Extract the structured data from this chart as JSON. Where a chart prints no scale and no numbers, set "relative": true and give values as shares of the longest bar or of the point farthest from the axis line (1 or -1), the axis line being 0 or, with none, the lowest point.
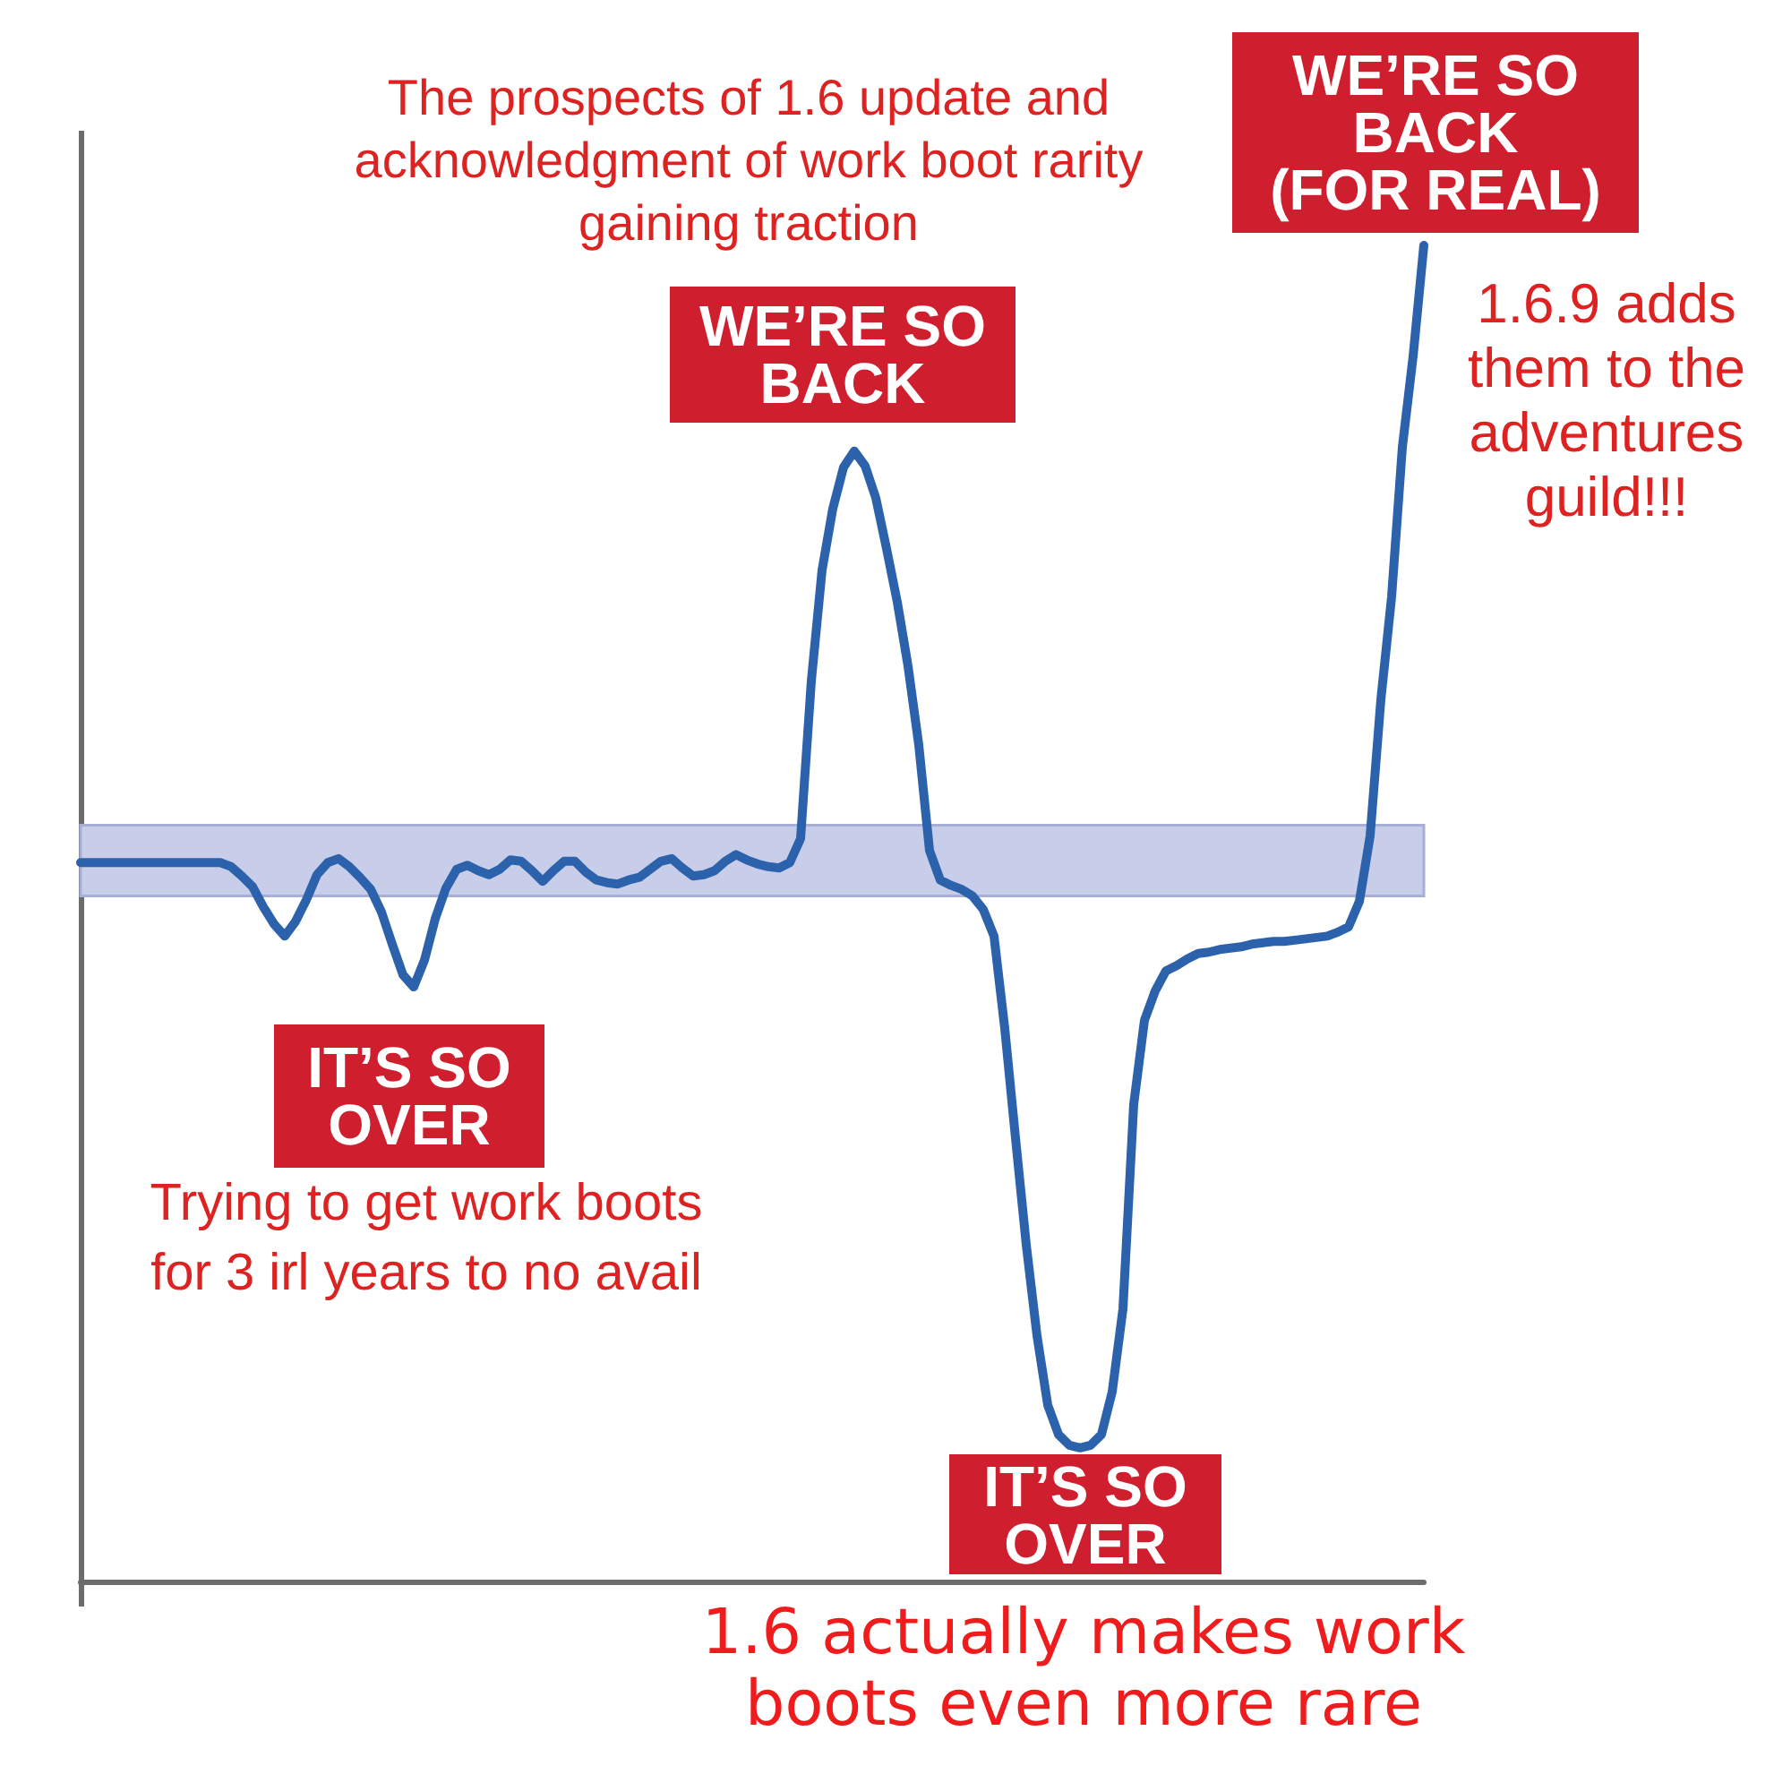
{
  "chart_data": {
    "type": "line",
    "relative": true,
    "marker": "none",
    "categories": [
      null,
      null,
      null,
      null,
      null,
      null,
      null,
      null,
      null,
      null,
      null,
      null,
      null,
      null,
      null,
      null,
      null,
      null,
      null,
      null,
      null,
      null,
      null,
      null,
      null,
      null,
      null,
      null,
      null,
      null,
      null,
      null,
      null,
      null,
      null,
      null,
      null,
      null,
      null,
      null,
      null,
      null,
      null,
      null,
      null,
      null,
      null,
      null,
      null,
      null,
      null,
      null,
      null,
      null,
      null,
      null,
      null,
      null,
      null,
      null,
      null,
      null,
      null,
      null,
      null,
      null,
      null,
      null,
      null,
      null,
      null,
      null,
      null,
      null,
      null,
      null,
      null,
      null,
      null,
      null,
      null,
      null,
      null,
      null,
      null,
      null,
      null,
      null,
      null,
      null,
      null,
      null,
      null,
      null,
      null,
      null,
      null,
      null,
      null,
      null,
      null,
      null,
      null,
      null,
      null,
      null,
      null,
      null,
      null,
      null,
      null,
      null,
      null,
      null,
      null,
      null,
      null,
      null,
      null,
      null,
      null,
      null,
      null,
      null,
      null,
      null
    ],
    "series": [
      {
        "color": "#2b62ab",
        "values": [
          0.538,
          0.538,
          0.538,
          0.538,
          0.538,
          0.538,
          0.538,
          0.538,
          0.538,
          0.538,
          0.538,
          0.538,
          0.538,
          0.538,
          0.535,
          0.528,
          0.52,
          0.505,
          0.492,
          0.483,
          0.494,
          0.51,
          0.529,
          0.538,
          0.541,
          0.535,
          0.527,
          0.518,
          0.501,
          0.477,
          0.454,
          0.445,
          0.465,
          0.496,
          0.519,
          0.533,
          0.536,
          0.532,
          0.529,
          0.533,
          0.54,
          0.539,
          0.532,
          0.524,
          0.532,
          0.539,
          0.539,
          0.531,
          0.525,
          0.523,
          0.522,
          0.525,
          0.527,
          0.533,
          0.539,
          0.541,
          0.534,
          0.528,
          0.529,
          0.532,
          0.539,
          0.544,
          0.54,
          0.537,
          0.535,
          0.534,
          0.538,
          0.556,
          0.674,
          0.757,
          0.803,
          0.834,
          0.846,
          0.835,
          0.811,
          0.773,
          0.733,
          0.685,
          0.626,
          0.547,
          0.525,
          0.521,
          0.518,
          0.513,
          0.503,
          0.483,
          0.414,
          0.332,
          0.252,
          0.184,
          0.132,
          0.11,
          0.102,
          0.1,
          0.102,
          0.11,
          0.142,
          0.204,
          0.357,
          0.42,
          0.442,
          0.457,
          0.461,
          0.466,
          0.47,
          0.471,
          0.473,
          0.474,
          0.475,
          0.477,
          0.478,
          0.479,
          0.479,
          0.48,
          0.481,
          0.482,
          0.483,
          0.486,
          0.49,
          0.509,
          0.558,
          0.66,
          0.737,
          0.849,
          0.917,
          1
        ]
      }
    ],
    "bands": [
      {
        "axis": "y",
        "from": 0.513,
        "to": 0.566,
        "color": "#c8cde9"
      }
    ],
    "annotations": [
      "The prospects of 1.6 update and acknowledgment of work boot rarity gaining traction",
      "WE’RE SO BACK (FOR REAL)",
      "WE’RE SO BACK",
      "1.6.9 adds them to the adventures guild!!!",
      "IT’S SO OVER",
      "Trying to get work boots for 3 irl years to no avail",
      "IT’S SO OVER",
      "1.6 actually makes work boots even more rare"
    ]
  }
}
